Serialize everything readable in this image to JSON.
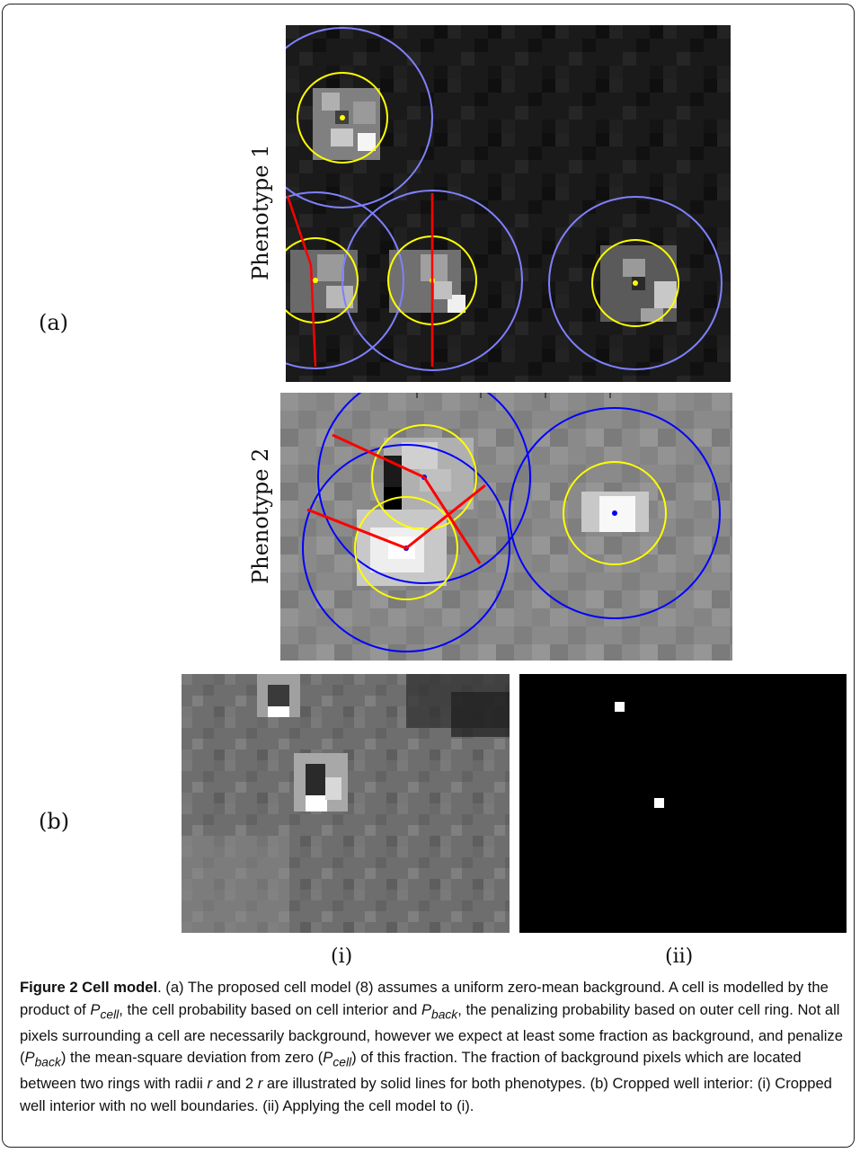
{
  "panel_a": {
    "label": "(a)",
    "phenotype1_label": "Phenotype 1",
    "phenotype2_label": "Phenotype 2"
  },
  "panel_b": {
    "label": "(b)",
    "sub_i_label": "(i)",
    "sub_ii_label": "(ii)"
  },
  "caption": {
    "title": "Figure 2 Cell model",
    "body_1": ". (a) The proposed cell model (8) assumes a uniform zero-mean background. A cell is modelled by the product of ",
    "p_cell": "P",
    "p_cell_sub": "cell",
    "body_2": ", the cell probability based on cell interior and ",
    "p_back": "P",
    "p_back_sub": "back",
    "body_3": ", the penalizing probability based on outer cell ring. Not all pixels surrounding a cell are necessarily background, however we expect at least some fraction as background, and penalize (",
    "p_back2": "P",
    "p_back2_sub": "back",
    "body_4": ") the mean-square deviation from zero (",
    "p_cell2": "P",
    "p_cell2_sub": "cell",
    "body_5": ") of this fraction. The fraction of background pixels which are located between two rings with radii ",
    "r1": "r",
    "body_6": " and 2 ",
    "r2": "r",
    "body_7": " are illustrated by solid lines for both phenotypes. (b) Cropped well interior: (i) Cropped well interior with no well boundaries. (ii) Applying the cell model to (i)."
  },
  "colors": {
    "outer_ring_p1": "#8080ff",
    "outer_ring_p2": "#0000ff",
    "inner_ring": "#ffff00",
    "divider": "#ff0000"
  }
}
